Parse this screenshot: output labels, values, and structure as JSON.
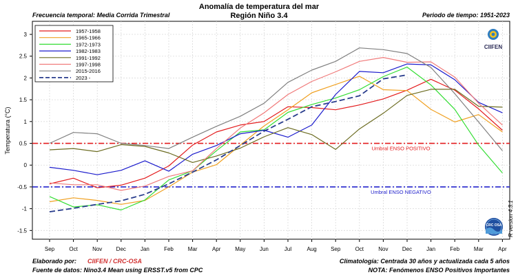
{
  "header": {
    "title": "Anomalía de temperatura del mar",
    "subtitle": "Región Niño 3.4",
    "frequency": "Frecuencia temporal: Media Corrida Trimestral",
    "period": "Periodo de tiempo: 1951-2023"
  },
  "footer": {
    "elaborated_label": "Elaborado por:",
    "elaborated_value": "CIIFEN / CRC-OSA",
    "source": "Fuente de datos: Nino3.4 Mean using ERSST.v5 from CPC",
    "climatology": "Climatología: Centrada 30 años y actualizada cada 5 años",
    "note": "NOTA: Fenómenos ENSO Positivos Importantes",
    "version": "R version 4.3.1"
  },
  "logos": {
    "ciifen_text": "CIIFEN",
    "crc_text": "CRC OSA"
  },
  "chart_data": {
    "type": "line",
    "xlabel": "",
    "ylabel": "Temperatura (°C)",
    "categories": [
      "Sep",
      "Oct",
      "Nov",
      "Dec",
      "Jan",
      "Feb",
      "Mar",
      "Apr",
      "May",
      "Jun",
      "Jul",
      "Aug",
      "Sep",
      "Oct",
      "Nov",
      "Dec",
      "Jan",
      "Feb",
      "Mar",
      "Apr"
    ],
    "ylim": [
      -1.7,
      3.3
    ],
    "yticks": [
      -1.5,
      -1,
      -0.5,
      0,
      0.5,
      1,
      1.5,
      2,
      2.5,
      3
    ],
    "ytick_labels": [
      "-1.5",
      "-1",
      "-0.5",
      "0",
      "0.5",
      "1",
      "1.5",
      "2",
      "2.5",
      "3"
    ],
    "grid": true,
    "legend_position": "top-left",
    "thresholds": [
      {
        "value": 0.5,
        "label": "Umbral ENSO POSITIVO",
        "color": "#e31a1c"
      },
      {
        "value": -0.5,
        "label": "Umbral ENSO NEGATIVO",
        "color": "#2222cc"
      }
    ],
    "series": [
      {
        "name": "1957-1958",
        "color": "#e31a1c",
        "dashed": false,
        "values": [
          -0.43,
          -0.3,
          -0.52,
          -0.46,
          -0.3,
          -0.02,
          0.46,
          0.76,
          0.92,
          1.0,
          1.34,
          1.32,
          1.27,
          1.38,
          1.52,
          1.72,
          1.97,
          1.72,
          1.29,
          0.8
        ]
      },
      {
        "name": "1965-1966",
        "color": "#f0a020",
        "dashed": false,
        "values": [
          -0.84,
          -0.75,
          -0.81,
          -0.9,
          -0.81,
          -0.5,
          -0.16,
          0.01,
          0.46,
          0.9,
          1.27,
          1.66,
          1.85,
          2.04,
          1.73,
          1.71,
          1.28,
          0.99,
          1.16,
          0.76
        ]
      },
      {
        "name": "1972-1973",
        "color": "#33dd33",
        "dashed": false,
        "values": [
          -0.72,
          -0.96,
          -0.91,
          -1.03,
          -0.8,
          -0.34,
          -0.13,
          0.33,
          0.76,
          0.81,
          1.21,
          1.39,
          1.54,
          1.73,
          2.03,
          2.25,
          1.84,
          1.28,
          0.46,
          -0.18
        ]
      },
      {
        "name": "1982-1983",
        "color": "#1a1acc",
        "dashed": false,
        "values": [
          -0.05,
          -0.12,
          -0.22,
          -0.12,
          0.1,
          -0.14,
          0.25,
          0.45,
          0.72,
          0.8,
          0.64,
          0.92,
          1.62,
          2.15,
          2.12,
          2.32,
          2.3,
          1.96,
          1.44,
          1.2
        ]
      },
      {
        "name": "1991-1992",
        "color": "#6b6b20",
        "dashed": false,
        "values": [
          0.35,
          0.38,
          0.31,
          0.47,
          0.43,
          0.28,
          0.06,
          0.21,
          0.39,
          0.65,
          0.86,
          0.7,
          0.36,
          0.83,
          1.19,
          1.6,
          1.74,
          1.74,
          1.35,
          1.33
        ]
      },
      {
        "name": "1997-1998",
        "color": "#f07a7a",
        "dashed": false,
        "values": [
          -0.41,
          -0.45,
          -0.45,
          -0.58,
          -0.48,
          -0.26,
          -0.13,
          0.38,
          0.85,
          1.2,
          1.62,
          1.92,
          2.14,
          2.38,
          2.47,
          2.36,
          2.37,
          2.02,
          1.42,
          0.92
        ]
      },
      {
        "name": "2015-2016",
        "color": "#808080",
        "dashed": false,
        "values": [
          0.5,
          0.75,
          0.72,
          0.5,
          0.45,
          0.38,
          0.64,
          0.89,
          1.12,
          1.42,
          1.9,
          2.18,
          2.38,
          2.69,
          2.65,
          2.56,
          2.24,
          1.64,
          0.99,
          0.33
        ]
      },
      {
        "name": "2023 -",
        "color": "#283c8c",
        "dashed": true,
        "values": [
          -1.07,
          -0.99,
          -0.9,
          -0.82,
          -0.67,
          -0.43,
          -0.16,
          0.12,
          0.45,
          0.78,
          1.05,
          1.34,
          1.46,
          1.59,
          1.98,
          2.07,
          null,
          null,
          null,
          null
        ]
      }
    ]
  }
}
